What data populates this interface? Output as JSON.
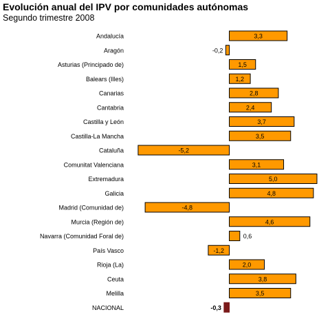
{
  "header": {
    "title": "Evolución anual del IPV por comunidades autónomas",
    "subtitle": "Segundo trimestre 2008"
  },
  "chart_data": {
    "type": "bar",
    "orientation": "horizontal",
    "title": "Evolución anual del IPV por comunidades autónomas",
    "subtitle": "Segundo trimestre 2008",
    "xlabel": "",
    "ylabel": "",
    "xlim": [
      -5.2,
      5.0
    ],
    "grid": false,
    "categories": [
      "Andalucía",
      "Aragón",
      "Asturias (Principado de)",
      "Balears (Illes)",
      "Canarias",
      "Cantabria",
      "Castilla y León",
      "Castilla-La Mancha",
      "Cataluña",
      "Comunitat Valenciana",
      "Extremadura",
      "Galicia",
      "Madrid (Comunidad de)",
      "Murcia (Región de)",
      "Navarra (Comunidad Foral de)",
      "País Vasco",
      "Rioja (La)",
      "Ceuta",
      "Melilla",
      "NACIONAL"
    ],
    "values": [
      3.3,
      -0.2,
      1.5,
      1.2,
      2.8,
      2.4,
      3.7,
      3.5,
      -5.2,
      3.1,
      5.0,
      4.8,
      -4.8,
      4.6,
      0.6,
      -1.2,
      2.0,
      3.8,
      3.5,
      -0.3
    ],
    "value_labels": [
      "3,3",
      "-0,2",
      "1,5",
      "1,2",
      "2,8",
      "2,4",
      "3,7",
      "3,5",
      "-5,2",
      "3,1",
      "5,0",
      "4,8",
      "-4,8",
      "4,6",
      "0,6",
      "-1,2",
      "2,0",
      "3,8",
      "3,5",
      "-0,3"
    ],
    "colors": {
      "default_bar": "#FF9900",
      "highlight_bar": "#7B1A1A",
      "bar_stroke": "#000000"
    },
    "highlight_category": "NACIONAL"
  }
}
